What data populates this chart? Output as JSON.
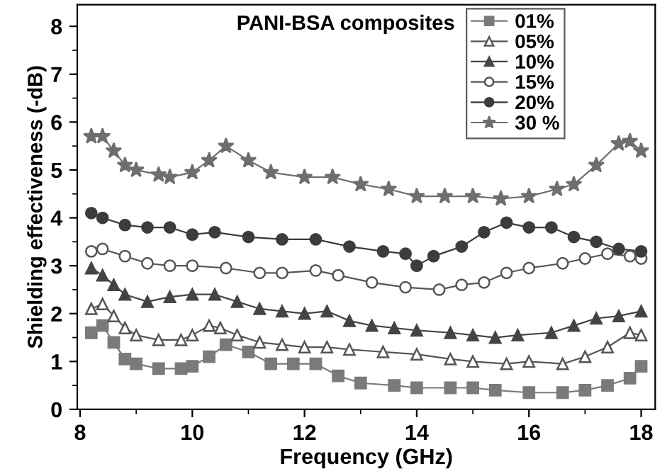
{
  "chart_data": {
    "type": "line",
    "xlabel": "Frequency (GHz)",
    "ylabel": "Shielding effectiveness (-dB)",
    "legend_title": "PANI-BSA composites",
    "legend": "top right",
    "grid": false,
    "line_style": "solid",
    "xlim": [
      7.95,
      18.25
    ],
    "ylim": [
      0,
      8.45
    ],
    "xticks": [
      8,
      10,
      12,
      14,
      16,
      18
    ],
    "yticks": [
      0,
      1,
      2,
      3,
      4,
      5,
      6,
      7,
      8
    ],
    "series": [
      {
        "name": "01%",
        "color": "#7a7a7a",
        "marker": "square",
        "x": [
          8.2,
          8.4,
          8.6,
          8.8,
          9.0,
          9.4,
          9.8,
          10.0,
          10.3,
          10.6,
          11.0,
          11.4,
          11.8,
          12.2,
          12.6,
          13.0,
          13.6,
          14.0,
          14.6,
          15.0,
          15.4,
          16.0,
          16.6,
          17.0,
          17.4,
          17.8,
          18.0
        ],
        "values": [
          1.6,
          1.75,
          1.4,
          1.05,
          0.95,
          0.85,
          0.85,
          0.9,
          1.1,
          1.35,
          1.2,
          0.95,
          0.95,
          0.95,
          0.7,
          0.55,
          0.5,
          0.45,
          0.45,
          0.45,
          0.4,
          0.35,
          0.35,
          0.4,
          0.5,
          0.65,
          0.9
        ]
      },
      {
        "name": "05%",
        "color": "#555555",
        "marker": "triangle",
        "x": [
          8.2,
          8.4,
          8.6,
          8.8,
          9.0,
          9.4,
          9.8,
          10.0,
          10.3,
          10.5,
          10.8,
          11.2,
          11.6,
          12.0,
          12.4,
          12.8,
          13.4,
          14.0,
          14.6,
          15.0,
          15.6,
          16.0,
          16.6,
          17.0,
          17.4,
          17.8,
          18.0
        ],
        "values": [
          2.1,
          2.2,
          1.95,
          1.7,
          1.55,
          1.45,
          1.45,
          1.55,
          1.75,
          1.7,
          1.55,
          1.4,
          1.35,
          1.3,
          1.3,
          1.25,
          1.2,
          1.15,
          1.05,
          1.0,
          0.95,
          1.0,
          0.95,
          1.1,
          1.3,
          1.6,
          1.55
        ]
      },
      {
        "name": "10%",
        "color": "#444444",
        "marker": "triangle",
        "x": [
          8.2,
          8.4,
          8.6,
          8.8,
          9.2,
          9.6,
          10.0,
          10.4,
          10.8,
          11.2,
          11.6,
          12.0,
          12.4,
          12.8,
          13.2,
          13.6,
          14.0,
          14.6,
          15.0,
          15.4,
          15.8,
          16.4,
          16.8,
          17.2,
          17.6,
          18.0
        ],
        "values": [
          2.95,
          2.8,
          2.6,
          2.4,
          2.25,
          2.35,
          2.4,
          2.4,
          2.25,
          2.1,
          2.05,
          2.0,
          2.05,
          1.85,
          1.75,
          1.7,
          1.65,
          1.6,
          1.55,
          1.5,
          1.55,
          1.6,
          1.75,
          1.9,
          1.95,
          2.05
        ]
      },
      {
        "name": "15%",
        "color": "#555555",
        "marker": "circle",
        "x": [
          8.2,
          8.4,
          8.8,
          9.2,
          9.6,
          10.0,
          10.6,
          11.2,
          11.6,
          12.2,
          12.6,
          13.2,
          13.8,
          14.4,
          14.8,
          15.2,
          15.6,
          16.0,
          16.6,
          17.0,
          17.4,
          17.8,
          18.0
        ],
        "values": [
          3.3,
          3.35,
          3.2,
          3.05,
          3.0,
          3.0,
          2.95,
          2.85,
          2.85,
          2.9,
          2.8,
          2.65,
          2.55,
          2.5,
          2.6,
          2.65,
          2.85,
          2.95,
          3.05,
          3.15,
          3.25,
          3.2,
          3.15
        ]
      },
      {
        "name": "20%",
        "color": "#3c3c3c",
        "marker": "circle",
        "x": [
          8.2,
          8.4,
          8.8,
          9.2,
          9.6,
          10.0,
          10.4,
          11.0,
          11.6,
          12.2,
          12.8,
          13.4,
          13.8,
          14.0,
          14.3,
          14.8,
          15.2,
          15.6,
          16.0,
          16.4,
          16.8,
          17.2,
          17.6,
          18.0
        ],
        "values": [
          4.1,
          4.0,
          3.85,
          3.8,
          3.8,
          3.65,
          3.7,
          3.6,
          3.55,
          3.55,
          3.4,
          3.3,
          3.25,
          3.0,
          3.2,
          3.4,
          3.7,
          3.9,
          3.8,
          3.8,
          3.6,
          3.5,
          3.35,
          3.3
        ]
      },
      {
        "name": "30 %",
        "color": "#6e6e6e",
        "marker": "star",
        "x": [
          8.2,
          8.4,
          8.6,
          8.8,
          9.0,
          9.4,
          9.6,
          10.0,
          10.3,
          10.6,
          11.0,
          11.4,
          12.0,
          12.5,
          13.0,
          13.5,
          14.0,
          14.5,
          15.0,
          15.5,
          16.0,
          16.5,
          16.8,
          17.2,
          17.6,
          17.8,
          18.0
        ],
        "values": [
          5.7,
          5.7,
          5.4,
          5.1,
          5.0,
          4.9,
          4.85,
          4.95,
          5.2,
          5.5,
          5.2,
          4.95,
          4.85,
          4.85,
          4.7,
          4.6,
          4.45,
          4.45,
          4.45,
          4.4,
          4.45,
          4.6,
          4.7,
          5.1,
          5.55,
          5.6,
          5.4
        ]
      }
    ]
  }
}
